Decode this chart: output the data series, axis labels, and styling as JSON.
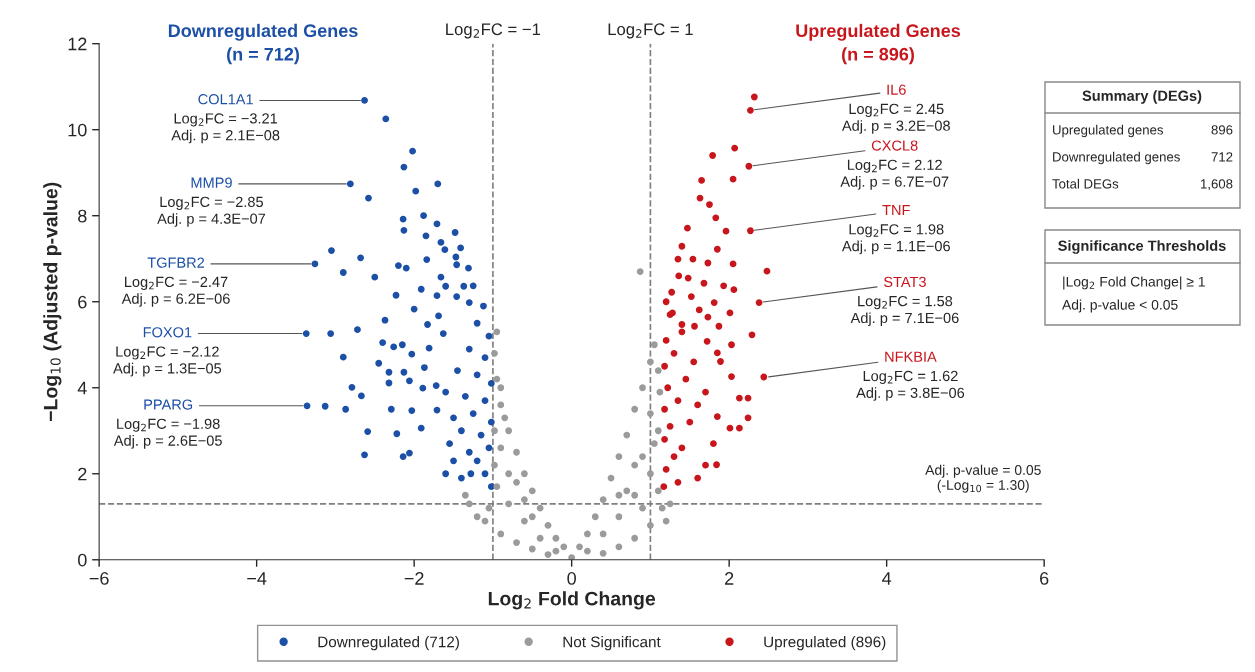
{
  "chart_data": {
    "type": "scatter",
    "xlabel": "Log$_{2}$ Fold Change",
    "ylabel": "−Log$_{10}$ (Adjusted p-value)",
    "xlim": [
      -6,
      6
    ],
    "xticks": [
      {
        "value": -6,
        "label": "−6"
      },
      {
        "value": -4,
        "label": "−4"
      },
      {
        "value": -2,
        "label": "−2"
      },
      0,
      2,
      4,
      6
    ],
    "ylim": [
      0,
      12
    ],
    "yticks": [
      0,
      2,
      4,
      6,
      8,
      10,
      12
    ],
    "marker": "circle",
    "legend": "bottom",
    "series": [
      {
        "name": "Downregulated (712)",
        "color": "#1c4fa6",
        "x": [
          -2.63,
          -2.36,
          -2.02,
          -2.13,
          -2.81,
          -2.58,
          -1.98,
          -1.7,
          -2.14,
          -1.88,
          -2.13,
          -1.71,
          -1.85,
          -1.48,
          -1.66,
          -1.61,
          -1.41,
          -3.05,
          -2.68,
          -3.26,
          -2.9,
          -2.5,
          -2.2,
          -2.1,
          -1.84,
          -1.47,
          -1.46,
          -1.31,
          -1.66,
          -1.6,
          -1.37,
          -1.25,
          -2.23,
          -1.91,
          -1.71,
          -1.46,
          -1.3,
          -2.0,
          -1.69,
          -2.37,
          -1.83,
          -1.63,
          -3.37,
          -3.06,
          -2.72,
          -2.4,
          -2.26,
          -2.15,
          -2.03,
          -1.81,
          -2.9,
          -2.32,
          -2.13,
          -2.32,
          -2.06,
          -1.89,
          -1.72,
          -2.79,
          -2.67,
          -2.45,
          -1.87,
          -3.36,
          -3.13,
          -2.87,
          -2.29,
          -2.03,
          -1.71,
          -2.59,
          -2.22,
          -1.91,
          -2.63,
          -2.14,
          -2.06,
          -1.02,
          -1.1,
          -1.2,
          -1.05,
          -1.3,
          -1.15,
          -1.4,
          -1.02,
          -1.25,
          -1.5,
          -1.1,
          -1.35,
          -1.02,
          -1.2,
          -1.45,
          -1.1,
          -1.3,
          -1.05,
          -1.2,
          -1.12,
          -1.55,
          -1.6,
          -1.28,
          -1.4,
          -1.5,
          -1.6
        ],
        "values": [
          10.68,
          10.25,
          9.5,
          9.13,
          8.74,
          8.41,
          8.57,
          8.74,
          7.92,
          8.0,
          7.66,
          7.81,
          7.53,
          7.61,
          7.38,
          7.21,
          7.25,
          7.19,
          7.02,
          6.88,
          6.68,
          6.57,
          6.84,
          6.78,
          6.98,
          7.04,
          6.86,
          6.78,
          6.57,
          6.36,
          6.36,
          6.37,
          6.15,
          6.29,
          6.14,
          6.12,
          5.98,
          5.83,
          5.67,
          5.57,
          5.47,
          5.26,
          5.26,
          5.26,
          5.35,
          5.05,
          4.95,
          5.0,
          4.78,
          4.92,
          4.71,
          4.36,
          4.36,
          4.11,
          4.16,
          3.99,
          4.05,
          4.01,
          3.81,
          4.57,
          4.47,
          3.58,
          3.57,
          3.5,
          3.5,
          3.47,
          3.48,
          2.98,
          2.93,
          3.06,
          2.44,
          2.4,
          2.48,
          1.7,
          2.0,
          2.3,
          2.6,
          2.5,
          2.9,
          3.0,
          3.2,
          3.4,
          3.3,
          3.7,
          3.8,
          4.1,
          4.3,
          4.4,
          4.7,
          4.9,
          5.2,
          5.5,
          5.9,
          2.7,
          3.9,
          2.0,
          1.9,
          2.3,
          2.0
        ]
      },
      {
        "name": "Not Significant",
        "color": "#9b9b9b",
        "x": [
          0.0,
          -0.1,
          -0.2,
          -0.3,
          -0.4,
          -0.5,
          -0.6,
          -0.7,
          -0.8,
          -0.9,
          -0.95,
          -0.98,
          -0.95,
          -0.2,
          -0.4,
          -0.6,
          -0.8,
          -0.95,
          -1.05,
          -1.1,
          -0.9,
          -0.7,
          -0.5,
          -0.3,
          -0.6,
          -0.8,
          -0.9,
          -0.7,
          -0.5,
          -0.85,
          -0.9,
          -0.98,
          -1.2,
          -1.3,
          -0.98,
          -1.35,
          0.1,
          0.2,
          0.3,
          0.4,
          0.5,
          0.6,
          0.7,
          0.8,
          0.9,
          1.0,
          1.05,
          0.87,
          0.2,
          0.4,
          0.6,
          0.8,
          1.0,
          1.1,
          1.15,
          1.0,
          0.8,
          0.6,
          0.4,
          0.7,
          0.9,
          1.1,
          1.0,
          1.12,
          1.1,
          0.9,
          1.2,
          1.25,
          0.6,
          0.8,
          1.05
        ],
        "values": [
          0.05,
          0.3,
          0.5,
          0.8,
          1.2,
          1.6,
          2.0,
          2.5,
          3.0,
          3.6,
          4.2,
          4.8,
          5.3,
          0.2,
          0.5,
          0.9,
          1.3,
          1.7,
          1.2,
          0.9,
          0.6,
          0.4,
          0.25,
          0.12,
          1.4,
          2.0,
          2.6,
          1.8,
          1.0,
          3.3,
          4.0,
          2.2,
          1.0,
          1.3,
          3.0,
          1.5,
          0.3,
          0.6,
          1.0,
          1.4,
          1.9,
          2.4,
          2.9,
          3.5,
          4.0,
          4.6,
          5.0,
          6.7,
          0.2,
          0.6,
          1.0,
          1.5,
          2.0,
          1.6,
          1.2,
          0.8,
          0.5,
          0.3,
          0.15,
          1.6,
          2.4,
          3.0,
          3.4,
          3.9,
          4.4,
          1.2,
          0.9,
          1.3,
          1.5,
          2.2,
          2.7
        ]
      },
      {
        "name": "Upregulated (896)",
        "color": "#c8161d",
        "x": [
          2.32,
          2.27,
          2.07,
          1.79,
          2.25,
          2.05,
          1.65,
          1.63,
          1.75,
          1.83,
          1.47,
          1.96,
          2.27,
          1.4,
          1.85,
          1.35,
          1.54,
          1.73,
          2.05,
          2.48,
          1.36,
          1.48,
          1.68,
          1.93,
          2.06,
          2.38,
          1.27,
          1.52,
          1.81,
          1.62,
          2.01,
          1.73,
          1.28,
          1.4,
          1.56,
          1.87,
          2.29,
          2.03,
          1.72,
          1.85,
          1.89,
          2.44,
          2.03,
          2.24,
          2.13,
          1.85,
          2.24,
          2.01,
          2.13,
          1.84,
          1.17,
          1.2,
          1.3,
          1.18,
          1.4,
          1.25,
          1.5,
          1.18,
          1.35,
          1.6,
          1.22,
          1.45,
          1.18,
          1.3,
          1.55,
          1.2,
          1.4,
          1.25,
          1.7,
          1.6,
          1.35,
          1.8,
          1.7,
          1.2
        ],
        "values": [
          10.76,
          10.45,
          9.57,
          9.4,
          9.15,
          8.85,
          8.82,
          8.41,
          8.26,
          7.95,
          7.71,
          7.64,
          7.65,
          7.29,
          7.22,
          6.99,
          6.99,
          6.9,
          6.88,
          6.71,
          6.6,
          6.55,
          6.43,
          6.37,
          6.28,
          5.98,
          6.22,
          6.12,
          5.98,
          5.81,
          5.74,
          5.64,
          5.74,
          5.47,
          5.43,
          5.43,
          5.23,
          5.0,
          5.08,
          4.81,
          4.61,
          4.25,
          4.26,
          3.76,
          3.76,
          3.33,
          3.3,
          3.06,
          3.06,
          2.21,
          1.7,
          2.1,
          2.4,
          2.8,
          2.6,
          3.1,
          3.2,
          3.5,
          3.7,
          3.6,
          4.0,
          4.2,
          4.5,
          4.8,
          4.6,
          5.1,
          5.3,
          5.7,
          2.2,
          1.9,
          1.8,
          2.7,
          3.9,
          6.0
        ]
      }
    ],
    "ref_lines": [
      {
        "axis": "x",
        "value": -1,
        "label": "Log$_{2}$FC = −1",
        "color": "#808080",
        "line_style": "dashed"
      },
      {
        "axis": "x",
        "value": 1,
        "label": "Log$_{2}$FC = 1",
        "color": "#808080",
        "line_style": "dashed"
      },
      {
        "axis": "y",
        "value": 1.3,
        "label": "Adj. p-value = 0.05\n(-Log$_{10}$ = 1.30)",
        "color": "#808080",
        "line_style": "dashed"
      }
    ],
    "annotations": [
      "Downregulated Genes\n(n = 712)",
      "Upregulated Genes\n(n = 896)",
      "Summary (DEGs)",
      "Upregulated genes",
      "896",
      "Downregulated genes",
      "712",
      "Total DEGs",
      "1,608",
      "Significance Thresholds",
      "|Log$_{2}$ Fold Change| ≥ 1",
      "Adj. p-value < 0.05",
      {
        "text": "COL1A1",
        "x": -2.63,
        "y": 10.68
      },
      "Log$_{2}$FC = −3.21\nAdj. p = 2.1E−08",
      {
        "text": "MMP9",
        "x": -2.81,
        "y": 8.74
      },
      "Log$_{2}$FC = −2.85\nAdj. p = 4.3E−07",
      {
        "text": "TGFBR2",
        "x": -3.26,
        "y": 6.88
      },
      "Log$_{2}$FC = −2.47\nAdj. p = 6.2E−06",
      {
        "text": "FOXO1",
        "x": -3.37,
        "y": 5.26
      },
      "Log$_{2}$FC = −2.12\nAdj. p = 1.3E−05",
      {
        "text": "PPARG",
        "x": -3.36,
        "y": 3.58
      },
      "Log$_{2}$FC = −1.98\nAdj. p = 2.6E−05",
      {
        "text": "IL6",
        "x": 2.27,
        "y": 10.45
      },
      "Log$_{2}$FC = 2.45\nAdj. p = 3.2E−08",
      {
        "text": "CXCL8",
        "x": 2.25,
        "y": 9.15
      },
      "Log$_{2}$FC = 2.12\nAdj. p = 6.7E−07",
      {
        "text": "TNF",
        "x": 2.27,
        "y": 7.65
      },
      "Log$_{2}$FC = 1.98\nAdj. p = 1.1E−06",
      {
        "text": "STAT3",
        "x": 2.38,
        "y": 5.98
      },
      "Log$_{2}$FC = 1.58\nAdj. p = 7.1E−06",
      {
        "text": "NFKBIA",
        "x": 2.45,
        "y": 4.24
      },
      "Log$_{2}$FC = 1.62\nAdj. p = 3.8E−06"
    ]
  }
}
